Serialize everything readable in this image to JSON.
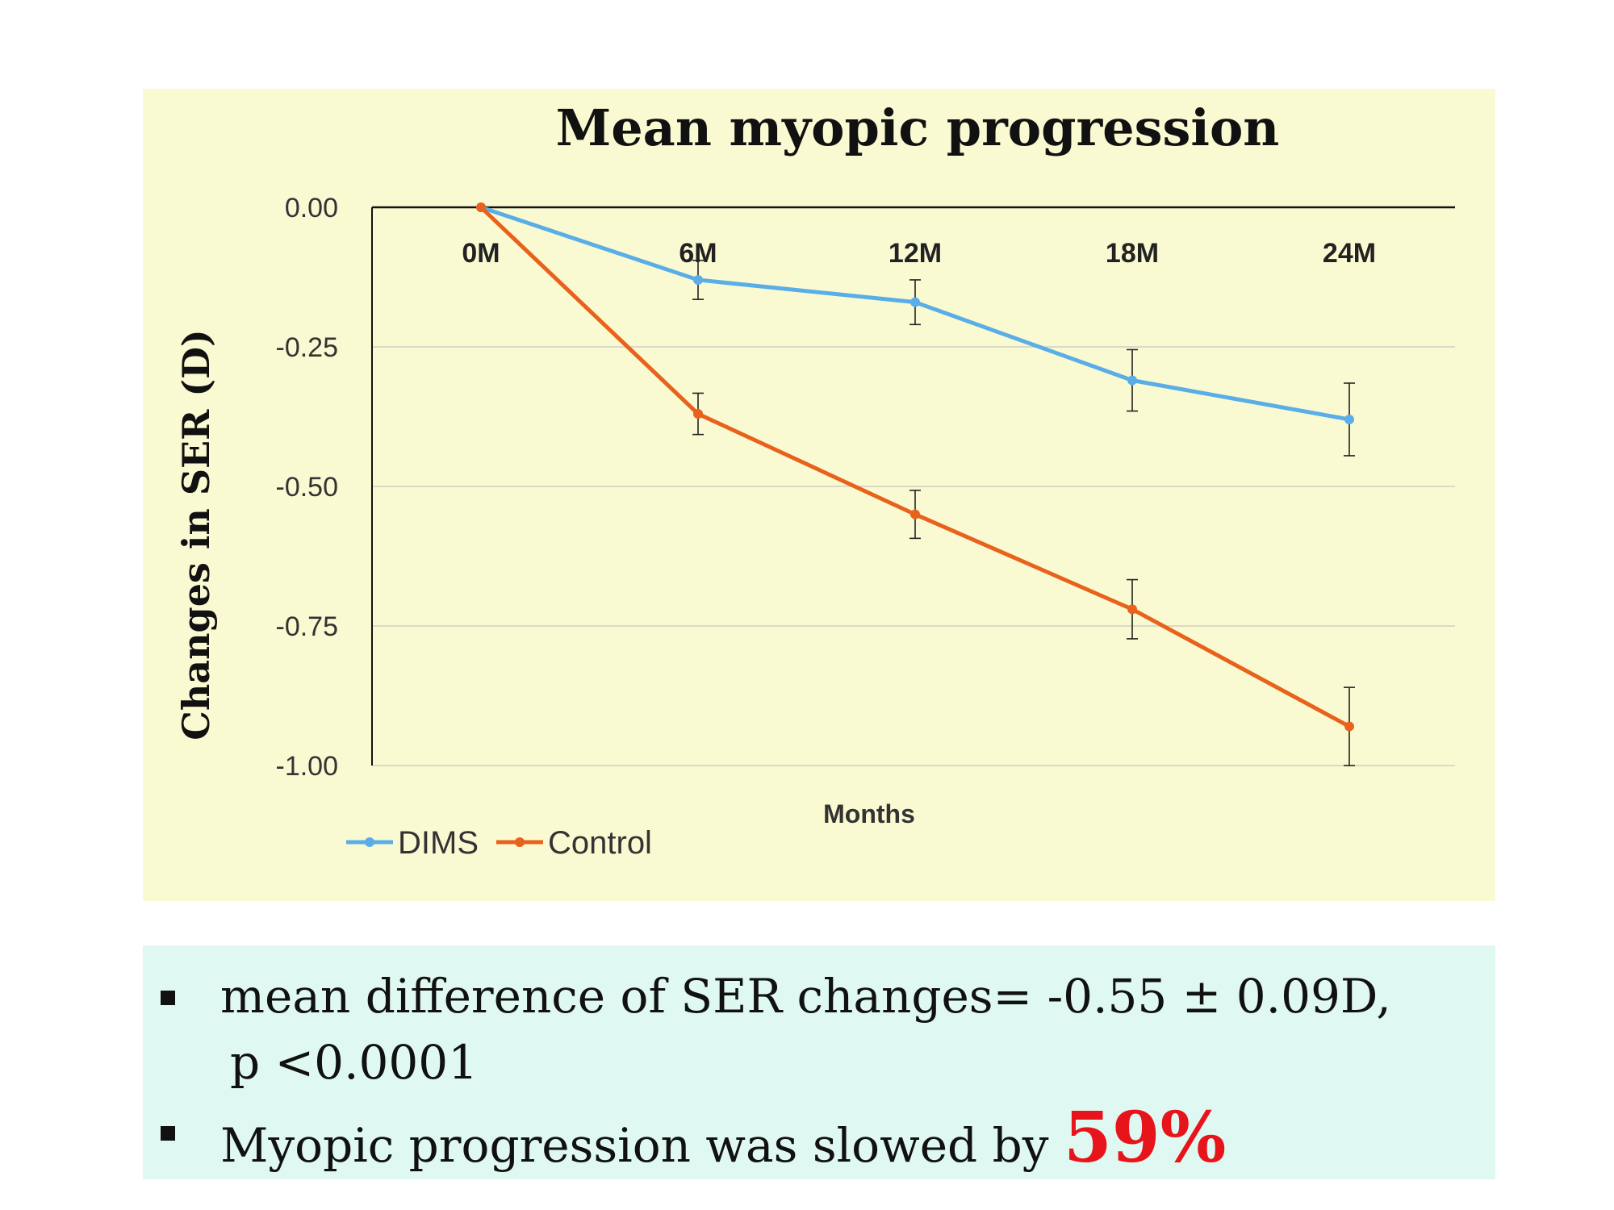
{
  "chart_data": {
    "type": "line",
    "title": "Mean myopic progression",
    "xlabel": "Months",
    "ylabel": "Changes in SER (D)",
    "categories": [
      "0M",
      "6M",
      "12M",
      "18M",
      "24M"
    ],
    "ylim": [
      -1.0,
      0.0
    ],
    "yticks": [
      "0.00",
      "-0.25",
      "-0.50",
      "-0.75",
      "-1.00"
    ],
    "ytick_values": [
      0.0,
      -0.25,
      -0.5,
      -0.75,
      -1.0
    ],
    "grid": true,
    "legend_position": "bottom-left",
    "series": [
      {
        "name": "DIMS",
        "color": "#5aaee8",
        "values": [
          0.0,
          -0.13,
          -0.17,
          -0.31,
          -0.38
        ],
        "errors": [
          0.0,
          0.035,
          0.04,
          0.055,
          0.065
        ]
      },
      {
        "name": "Control",
        "color": "#e8621c",
        "values": [
          0.0,
          -0.37,
          -0.55,
          -0.72,
          -0.93
        ],
        "errors": [
          0.0,
          0.037,
          0.043,
          0.053,
          0.07
        ]
      }
    ]
  },
  "summary": {
    "bullet1_line1": "mean difference of SER changes= -0.55 ± 0.09D,",
    "bullet1_line2": "p <0.0001",
    "bullet2_prefix": "Myopic progression was slowed by ",
    "bullet2_highlight": "59%",
    "highlight_color": "#e8141b"
  }
}
